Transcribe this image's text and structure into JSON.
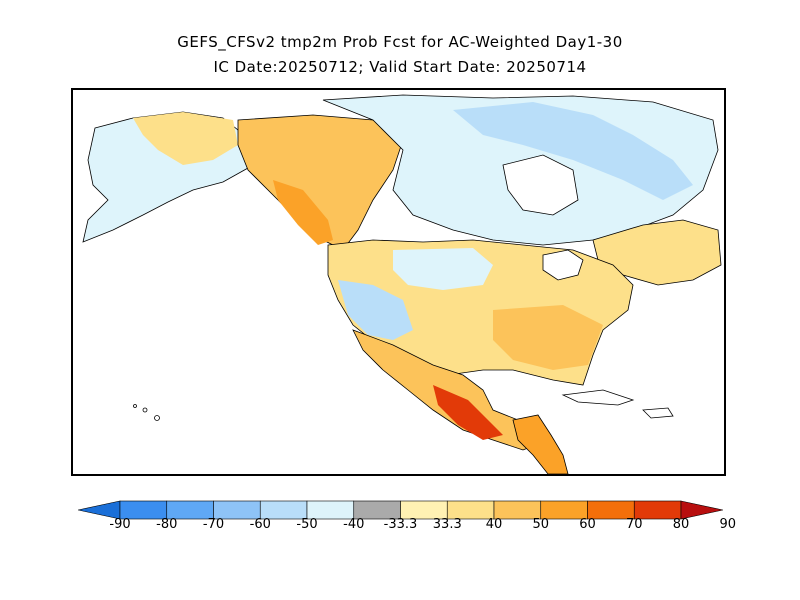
{
  "title": {
    "line1": "GEFS_CFSv2 tmp2m Prob Fcst for AC-Weighted Day1-30",
    "line2": "IC Date:20250712; Valid Start Date: 20250714"
  },
  "legend": {
    "labels": [
      "-90",
      "-80",
      "-70",
      "-60",
      "-50",
      "-40",
      "-33.3",
      "33.3",
      "40",
      "50",
      "60",
      "70",
      "80",
      "90"
    ],
    "colors": [
      "#1a6fd8",
      "#3b8ef0",
      "#5fa8f5",
      "#8ec3f7",
      "#b9def9",
      "#def4fb",
      "#aaaaaa",
      "#fff1b3",
      "#fde08a",
      "#fcc35a",
      "#fba228",
      "#f46f0a",
      "#e23a08",
      "#b80f0f"
    ]
  },
  "map": {
    "region": "North America",
    "palette": {
      "cold_light": "#def4fb",
      "cold_mid": "#b9def9",
      "cold_strong": "#8ec3f7",
      "neutral_land": "#ffffff",
      "warm_light": "#fff1b3",
      "warm_mid": "#fde08a",
      "warm_strong": "#fcc35a",
      "hot": "#fba228",
      "very_hot": "#e23a08"
    }
  }
}
